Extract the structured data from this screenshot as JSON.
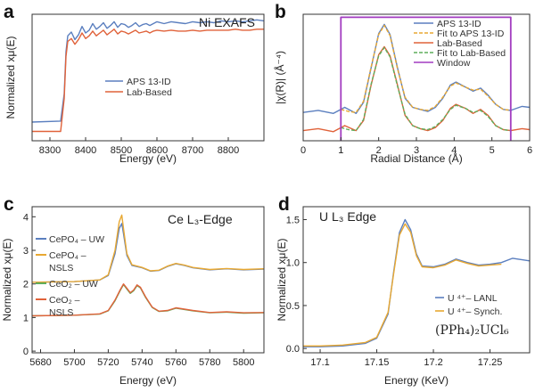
{
  "figure": {
    "panel_letters": [
      "a",
      "b",
      "c",
      "d"
    ]
  },
  "colors": {
    "blue": "#5b7fbf",
    "red": "#e0623a",
    "orange": "#e8a832",
    "green": "#5fae5c",
    "purple": "#a23cc0",
    "axis": "#333333"
  },
  "chart_data": [
    {
      "id": "a",
      "type": "line",
      "title": "Ni EXAFS",
      "xlabel": "Energy (eV)",
      "ylabel": "Normalized xμ(E)",
      "xlim": [
        8250,
        8900
      ],
      "ylim": [
        0,
        1.35
      ],
      "xticks": [
        8300,
        8400,
        8500,
        8600,
        8700,
        8800
      ],
      "yticks": [],
      "legend": {
        "position": "center",
        "entries": [
          "APS 13-ID",
          "Lab-Based"
        ]
      },
      "series": [
        {
          "name": "APS 13-ID",
          "color": "#5b7fbf",
          "x": [
            8250,
            8330,
            8340,
            8345,
            8350,
            8360,
            8370,
            8380,
            8390,
            8400,
            8410,
            8420,
            8430,
            8440,
            8450,
            8460,
            8470,
            8480,
            8490,
            8500,
            8510,
            8520,
            8530,
            8540,
            8550,
            8560,
            8570,
            8580,
            8590,
            8600,
            8620,
            8640,
            8660,
            8680,
            8700,
            8720,
            8740,
            8760,
            8780,
            8800,
            8820,
            8840,
            8860,
            8880,
            8900
          ],
          "y": [
            0.2,
            0.21,
            0.5,
            0.95,
            1.12,
            1.16,
            1.08,
            1.13,
            1.22,
            1.15,
            1.18,
            1.25,
            1.19,
            1.22,
            1.26,
            1.2,
            1.23,
            1.27,
            1.21,
            1.25,
            1.24,
            1.21,
            1.23,
            1.26,
            1.22,
            1.24,
            1.25,
            1.23,
            1.25,
            1.27,
            1.25,
            1.27,
            1.26,
            1.25,
            1.27,
            1.26,
            1.27,
            1.26,
            1.28,
            1.27,
            1.28,
            1.27,
            1.28,
            1.29,
            1.28
          ]
        },
        {
          "name": "Lab-Based",
          "color": "#e0623a",
          "x": [
            8250,
            8330,
            8340,
            8345,
            8350,
            8360,
            8370,
            8380,
            8390,
            8400,
            8410,
            8420,
            8430,
            8440,
            8450,
            8460,
            8470,
            8480,
            8490,
            8500,
            8510,
            8520,
            8530,
            8540,
            8550,
            8560,
            8570,
            8580,
            8590,
            8600,
            8620,
            8640,
            8660,
            8680,
            8700,
            8720,
            8740,
            8760,
            8780,
            8800,
            8820,
            8840,
            8860,
            8880,
            8900
          ],
          "y": [
            0.1,
            0.1,
            0.45,
            0.9,
            1.06,
            1.09,
            1.03,
            1.08,
            1.15,
            1.09,
            1.12,
            1.17,
            1.12,
            1.15,
            1.18,
            1.13,
            1.16,
            1.19,
            1.14,
            1.17,
            1.16,
            1.14,
            1.16,
            1.18,
            1.15,
            1.16,
            1.17,
            1.15,
            1.17,
            1.18,
            1.17,
            1.18,
            1.17,
            1.17,
            1.18,
            1.17,
            1.18,
            1.18,
            1.18,
            1.18,
            1.19,
            1.18,
            1.18,
            1.19,
            1.19
          ]
        }
      ]
    },
    {
      "id": "b",
      "type": "line",
      "title": "",
      "xlabel": "Radial Distance (Å)",
      "ylabel": "|χ(R)| (Å⁻⁴)",
      "xlim": [
        0,
        6
      ],
      "ylim": [
        0,
        1.25
      ],
      "xticks": [
        0,
        1,
        2,
        3,
        4,
        5,
        6
      ],
      "yticks": [],
      "legend": {
        "position": "top-right",
        "entries": [
          "APS 13-ID",
          "Fit to APS 13-ID",
          "Lab-Based",
          "Fit to Lab-Based",
          "Window"
        ]
      },
      "series": [
        {
          "name": "APS 13-ID",
          "color": "#5b7fbf",
          "dash": false,
          "x": [
            0,
            0.4,
            0.8,
            1.1,
            1.4,
            1.6,
            1.8,
            2.0,
            2.15,
            2.3,
            2.5,
            2.7,
            2.9,
            3.1,
            3.3,
            3.5,
            3.7,
            3.9,
            4.05,
            4.3,
            4.5,
            4.7,
            4.9,
            5.1,
            5.3,
            5.5,
            5.8,
            6.0
          ],
          "y": [
            0.28,
            0.3,
            0.27,
            0.33,
            0.27,
            0.38,
            0.72,
            1.06,
            1.15,
            1.05,
            0.72,
            0.42,
            0.33,
            0.31,
            0.29,
            0.33,
            0.42,
            0.55,
            0.58,
            0.53,
            0.49,
            0.52,
            0.45,
            0.36,
            0.31,
            0.3,
            0.34,
            0.33
          ]
        },
        {
          "name": "Fit to APS 13-ID",
          "color": "#e8a832",
          "dash": true,
          "x": [
            1.0,
            1.2,
            1.4,
            1.6,
            1.8,
            2.0,
            2.15,
            2.3,
            2.5,
            2.7,
            2.9,
            3.1,
            3.3,
            3.5,
            3.7,
            3.9,
            4.05,
            4.3,
            4.5,
            4.7,
            4.9,
            5.1,
            5.3,
            5.5
          ],
          "y": [
            0.31,
            0.29,
            0.28,
            0.39,
            0.73,
            1.05,
            1.14,
            1.04,
            0.71,
            0.43,
            0.33,
            0.31,
            0.3,
            0.34,
            0.43,
            0.54,
            0.57,
            0.53,
            0.5,
            0.51,
            0.44,
            0.36,
            0.31,
            0.3
          ]
        },
        {
          "name": "Lab-Based",
          "color": "#e0623a",
          "dash": false,
          "x": [
            0,
            0.4,
            0.8,
            1.1,
            1.4,
            1.6,
            1.8,
            2.0,
            2.15,
            2.3,
            2.5,
            2.7,
            2.9,
            3.1,
            3.3,
            3.5,
            3.7,
            3.9,
            4.05,
            4.3,
            4.5,
            4.7,
            4.9,
            5.1,
            5.3,
            5.5,
            5.8,
            6.0
          ],
          "y": [
            0.1,
            0.12,
            0.09,
            0.15,
            0.1,
            0.2,
            0.55,
            0.85,
            0.93,
            0.84,
            0.55,
            0.25,
            0.15,
            0.12,
            0.1,
            0.13,
            0.2,
            0.32,
            0.36,
            0.32,
            0.27,
            0.31,
            0.25,
            0.15,
            0.11,
            0.1,
            0.12,
            0.11
          ]
        },
        {
          "name": "Fit to Lab-Based",
          "color": "#5fae5c",
          "dash": true,
          "x": [
            1.0,
            1.2,
            1.4,
            1.6,
            1.8,
            2.0,
            2.15,
            2.3,
            2.5,
            2.7,
            2.9,
            3.1,
            3.3,
            3.5,
            3.7,
            3.9,
            4.05,
            4.3,
            4.5,
            4.7,
            4.9,
            5.1,
            5.3,
            5.5
          ],
          "y": [
            0.13,
            0.11,
            0.1,
            0.21,
            0.56,
            0.84,
            0.92,
            0.83,
            0.54,
            0.26,
            0.15,
            0.12,
            0.11,
            0.14,
            0.21,
            0.31,
            0.35,
            0.32,
            0.28,
            0.3,
            0.24,
            0.15,
            0.11,
            0.1
          ]
        },
        {
          "name": "Window",
          "color": "#a23cc0",
          "dash": false,
          "x": [
            1.0,
            1.0,
            5.5,
            5.5
          ],
          "y": [
            0,
            1.22,
            1.22,
            0
          ]
        }
      ]
    },
    {
      "id": "c",
      "type": "line",
      "title": "Ce L₃-Edge",
      "xlabel": "Energy (eV)",
      "ylabel": "Normalized xμ(E)",
      "xlim": [
        5675,
        5812
      ],
      "ylim": [
        -0.05,
        4.3
      ],
      "xticks": [
        5680,
        5700,
        5720,
        5740,
        5760,
        5780,
        5800
      ],
      "yticks": [
        0,
        1,
        2,
        3,
        4
      ],
      "legend": {
        "position": "top-left",
        "entries": [
          "CePO₄ – UW",
          "CePO₄ – NSLS",
          "CeO₂ – UW",
          "CeO₂ – NSLS"
        ]
      },
      "series": [
        {
          "name": "CePO₄ – UW",
          "color": "#5b7fbf",
          "x": [
            5675,
            5700,
            5715,
            5720,
            5724,
            5726.5,
            5728,
            5729,
            5731,
            5734,
            5740,
            5745,
            5750,
            5755,
            5760,
            5765,
            5770,
            5780,
            5790,
            5800,
            5812
          ],
          "y": [
            2.05,
            2.07,
            2.12,
            2.25,
            2.9,
            3.65,
            3.8,
            3.5,
            2.85,
            2.55,
            2.48,
            2.38,
            2.4,
            2.52,
            2.6,
            2.55,
            2.48,
            2.42,
            2.45,
            2.42,
            2.44
          ]
        },
        {
          "name": "CePO₄ – NSLS",
          "color": "#e8a832",
          "x": [
            5675,
            5700,
            5715,
            5720,
            5724,
            5726.5,
            5728,
            5729,
            5731,
            5734,
            5740,
            5745,
            5750,
            5755,
            5760,
            5765,
            5770,
            5780,
            5790,
            5800,
            5812
          ],
          "y": [
            2.05,
            2.07,
            2.12,
            2.27,
            3.0,
            3.85,
            4.05,
            3.65,
            2.9,
            2.57,
            2.49,
            2.39,
            2.41,
            2.53,
            2.61,
            2.56,
            2.49,
            2.43,
            2.46,
            2.43,
            2.45
          ]
        },
        {
          "name": "CeO₂ – UW",
          "color": "#5fae5c",
          "x": [
            5675,
            5700,
            5715,
            5720,
            5724,
            5727,
            5729,
            5731,
            5733,
            5735,
            5737,
            5739,
            5742,
            5746,
            5750,
            5755,
            5760,
            5770,
            5780,
            5790,
            5800,
            5812
          ],
          "y": [
            1.05,
            1.07,
            1.1,
            1.2,
            1.5,
            1.8,
            1.98,
            1.85,
            1.72,
            1.8,
            1.95,
            1.88,
            1.6,
            1.3,
            1.18,
            1.2,
            1.28,
            1.2,
            1.14,
            1.16,
            1.13,
            1.14
          ]
        },
        {
          "name": "CeO₂ – NSLS",
          "color": "#e0623a",
          "x": [
            5675,
            5700,
            5715,
            5720,
            5724,
            5727,
            5729,
            5731,
            5733,
            5735,
            5737,
            5739,
            5742,
            5746,
            5750,
            5755,
            5760,
            5770,
            5780,
            5790,
            5800,
            5812
          ],
          "y": [
            1.05,
            1.07,
            1.11,
            1.21,
            1.52,
            1.82,
            2.0,
            1.87,
            1.74,
            1.82,
            1.97,
            1.9,
            1.62,
            1.31,
            1.19,
            1.21,
            1.29,
            1.21,
            1.15,
            1.17,
            1.14,
            1.15
          ]
        }
      ]
    },
    {
      "id": "d",
      "type": "line",
      "title": "U L₃ Edge",
      "xlabel": "Energy (KeV)",
      "ylabel": "Normalized xμ(E)",
      "xlim": [
        17.085,
        17.285
      ],
      "ylim": [
        -0.05,
        1.65
      ],
      "xticks": [
        17.1,
        17.15,
        17.2,
        17.25
      ],
      "yticks": [
        0.0,
        0.5,
        1.0,
        1.5
      ],
      "annotation": "(PPh₄)₂UCl₆",
      "legend": {
        "position": "bottom-right",
        "entries": [
          "U ⁴⁺– LANL",
          "U ⁴⁺– Synch."
        ]
      },
      "series": [
        {
          "name": "U ⁴⁺– LANL",
          "color": "#5b7fbf",
          "x": [
            17.085,
            17.1,
            17.12,
            17.14,
            17.15,
            17.16,
            17.165,
            17.17,
            17.175,
            17.18,
            17.185,
            17.19,
            17.2,
            17.21,
            17.22,
            17.23,
            17.24,
            17.25,
            17.26,
            17.27,
            17.285
          ],
          "y": [
            0.02,
            0.02,
            0.03,
            0.06,
            0.12,
            0.4,
            0.9,
            1.35,
            1.5,
            1.38,
            1.1,
            0.96,
            0.95,
            0.98,
            1.04,
            1.0,
            0.97,
            0.98,
            1.0,
            1.05,
            1.02
          ]
        },
        {
          "name": "U ⁴⁺– Synch.",
          "color": "#e8a832",
          "x": [
            17.085,
            17.1,
            17.12,
            17.14,
            17.15,
            17.16,
            17.165,
            17.17,
            17.175,
            17.18,
            17.185,
            17.19,
            17.2,
            17.21,
            17.22,
            17.23,
            17.24,
            17.25,
            17.26
          ],
          "y": [
            0.03,
            0.03,
            0.04,
            0.07,
            0.13,
            0.42,
            0.88,
            1.32,
            1.45,
            1.35,
            1.08,
            0.95,
            0.94,
            0.97,
            1.03,
            0.99,
            0.96,
            0.97,
            0.98
          ]
        }
      ]
    }
  ]
}
